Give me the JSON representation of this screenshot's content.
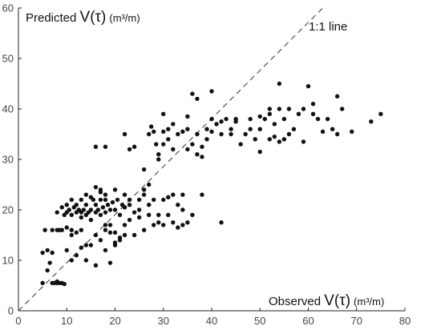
{
  "chart_data": {
    "type": "scatter",
    "title": "",
    "xlabel": {
      "pre": "Observed ",
      "sym": "V(τ)",
      "unit": "(m³/m)"
    },
    "ylabel": {
      "pre": "Predicted ",
      "sym": "V(τ)",
      "unit": "(m³/m)"
    },
    "xlim": [
      0,
      80
    ],
    "ylim": [
      0,
      60
    ],
    "xticks": [
      "0",
      "10",
      "20",
      "30",
      "40",
      "50",
      "60",
      "70",
      "80"
    ],
    "yticks": [
      "0",
      "10",
      "20",
      "30",
      "40",
      "50",
      "60"
    ],
    "grid": false,
    "reference_line": {
      "label": "1:1 line",
      "from": [
        0,
        0
      ],
      "to": [
        63,
        60
      ]
    },
    "point_color": "#111111",
    "points": [
      [
        5,
        5.5
      ],
      [
        5,
        11.5
      ],
      [
        5.5,
        16
      ],
      [
        6,
        8
      ],
      [
        6,
        12
      ],
      [
        6.5,
        9.5
      ],
      [
        7,
        11.5
      ],
      [
        7,
        5.5
      ],
      [
        7.5,
        5.5
      ],
      [
        8,
        5.5
      ],
      [
        8,
        5.8
      ],
      [
        8.5,
        5.5
      ],
      [
        9,
        5.5
      ],
      [
        9.5,
        5.3
      ],
      [
        7,
        16
      ],
      [
        8,
        16
      ],
      [
        8.5,
        16
      ],
      [
        9,
        16
      ],
      [
        10,
        16.5
      ],
      [
        11,
        16
      ],
      [
        12,
        15.5
      ],
      [
        13,
        16
      ],
      [
        11,
        15
      ],
      [
        8,
        19.5
      ],
      [
        9,
        20.5
      ],
      [
        9.5,
        19
      ],
      [
        10,
        21
      ],
      [
        10,
        19.5
      ],
      [
        10.5,
        20
      ],
      [
        11,
        19
      ],
      [
        11,
        22
      ],
      [
        11.5,
        20.5
      ],
      [
        12,
        19.5
      ],
      [
        12,
        21
      ],
      [
        12.5,
        20
      ],
      [
        13,
        18.5
      ],
      [
        13,
        19.5
      ],
      [
        13.5,
        20
      ],
      [
        14,
        19
      ],
      [
        14,
        21
      ],
      [
        14.5,
        19.5
      ],
      [
        15,
        20
      ],
      [
        15,
        18
      ],
      [
        15.5,
        22
      ],
      [
        16,
        19.5
      ],
      [
        16,
        21
      ],
      [
        16.5,
        20
      ],
      [
        17,
        19
      ],
      [
        17,
        22
      ],
      [
        17.5,
        20.5
      ],
      [
        18,
        19.5
      ],
      [
        18,
        23
      ],
      [
        18.5,
        21
      ],
      [
        19,
        20
      ],
      [
        19,
        17
      ],
      [
        19.5,
        21.5
      ],
      [
        20,
        20
      ],
      [
        20.5,
        22
      ],
      [
        21,
        19
      ],
      [
        21.5,
        21
      ],
      [
        22,
        20.5
      ],
      [
        13,
        22
      ],
      [
        14,
        23
      ],
      [
        15,
        22.5
      ],
      [
        16,
        24.5
      ],
      [
        17,
        23.5
      ],
      [
        17,
        24
      ],
      [
        18,
        22
      ],
      [
        20,
        24
      ],
      [
        22,
        23
      ],
      [
        10,
        12
      ],
      [
        11,
        10
      ],
      [
        12,
        11
      ],
      [
        13,
        12.5
      ],
      [
        14,
        13
      ],
      [
        15,
        13
      ],
      [
        16,
        15
      ],
      [
        17,
        14
      ],
      [
        18,
        16
      ],
      [
        18,
        17
      ],
      [
        19,
        15.5
      ],
      [
        20,
        15.5
      ],
      [
        21,
        14
      ],
      [
        20,
        13
      ],
      [
        22,
        15
      ],
      [
        14,
        10
      ],
      [
        16,
        9
      ],
      [
        18,
        12
      ],
      [
        19,
        9.5
      ],
      [
        20,
        13.5
      ],
      [
        21,
        14.5
      ],
      [
        22,
        35
      ],
      [
        23,
        32
      ],
      [
        24,
        32.5
      ],
      [
        25,
        22
      ],
      [
        26,
        24
      ],
      [
        26,
        28
      ],
      [
        27,
        25
      ],
      [
        27,
        35
      ],
      [
        27.5,
        36.5
      ],
      [
        28,
        35.5
      ],
      [
        28.5,
        33
      ],
      [
        29,
        31
      ],
      [
        29,
        30
      ],
      [
        30,
        33
      ],
      [
        30,
        35.5
      ],
      [
        31,
        34
      ],
      [
        31,
        36
      ],
      [
        32,
        37
      ],
      [
        32,
        32
      ],
      [
        33,
        35
      ],
      [
        34,
        35.5
      ],
      [
        35,
        36
      ],
      [
        35,
        32
      ],
      [
        36,
        33
      ],
      [
        37,
        31
      ],
      [
        37,
        35
      ],
      [
        38,
        32.5
      ],
      [
        38,
        30.5
      ],
      [
        39,
        34
      ],
      [
        39,
        36
      ],
      [
        40,
        35.5
      ],
      [
        41,
        37
      ],
      [
        42,
        35
      ],
      [
        43,
        38
      ],
      [
        44,
        36
      ],
      [
        44,
        35
      ],
      [
        45,
        37.5
      ],
      [
        46,
        33
      ],
      [
        47,
        35
      ],
      [
        48,
        36
      ],
      [
        49,
        34
      ],
      [
        50,
        36
      ],
      [
        50,
        38.5
      ],
      [
        51,
        38
      ],
      [
        52,
        39
      ],
      [
        53,
        37
      ],
      [
        54,
        40
      ],
      [
        55,
        38
      ],
      [
        56,
        35
      ],
      [
        57,
        36
      ],
      [
        58,
        39
      ],
      [
        59,
        40
      ],
      [
        60,
        44.5
      ],
      [
        61,
        41
      ],
      [
        62,
        38
      ],
      [
        63,
        35.5
      ],
      [
        64,
        38
      ],
      [
        65,
        36
      ],
      [
        66,
        42.5
      ],
      [
        66,
        35
      ],
      [
        67,
        40
      ],
      [
        69,
        35.5
      ],
      [
        73,
        37.5
      ],
      [
        75,
        39
      ],
      [
        36,
        43
      ],
      [
        40,
        43.5
      ],
      [
        37,
        42
      ],
      [
        54,
        45
      ],
      [
        16,
        32.5
      ],
      [
        18,
        32.5
      ],
      [
        50,
        31.5
      ],
      [
        52,
        34
      ],
      [
        53,
        34.5
      ],
      [
        54,
        33.5
      ],
      [
        55,
        34
      ],
      [
        30,
        39
      ],
      [
        35,
        38.5
      ],
      [
        40,
        38
      ],
      [
        42,
        37.5
      ],
      [
        45,
        38
      ],
      [
        48,
        38
      ],
      [
        52,
        40
      ],
      [
        56,
        40
      ],
      [
        59,
        33.5
      ],
      [
        61,
        39
      ],
      [
        25,
        20
      ],
      [
        26,
        23
      ],
      [
        28,
        22
      ],
      [
        29,
        19
      ],
      [
        30,
        22
      ],
      [
        31,
        22.5
      ],
      [
        32,
        23
      ],
      [
        33,
        21
      ],
      [
        34,
        20
      ],
      [
        34,
        23
      ],
      [
        36,
        19
      ],
      [
        38,
        23
      ],
      [
        27,
        21
      ],
      [
        28,
        17
      ],
      [
        29,
        17.5
      ],
      [
        30,
        17
      ],
      [
        31,
        19
      ],
      [
        32,
        17.5
      ],
      [
        33,
        16.5
      ],
      [
        34,
        17
      ],
      [
        35,
        17.5
      ],
      [
        42,
        17.5
      ],
      [
        24,
        19.5
      ],
      [
        23,
        21
      ],
      [
        22,
        17
      ],
      [
        23,
        18
      ],
      [
        24,
        15
      ],
      [
        25,
        18.5
      ],
      [
        26,
        16
      ],
      [
        27,
        19
      ],
      [
        22,
        20.5
      ],
      [
        23,
        22
      ]
    ]
  }
}
